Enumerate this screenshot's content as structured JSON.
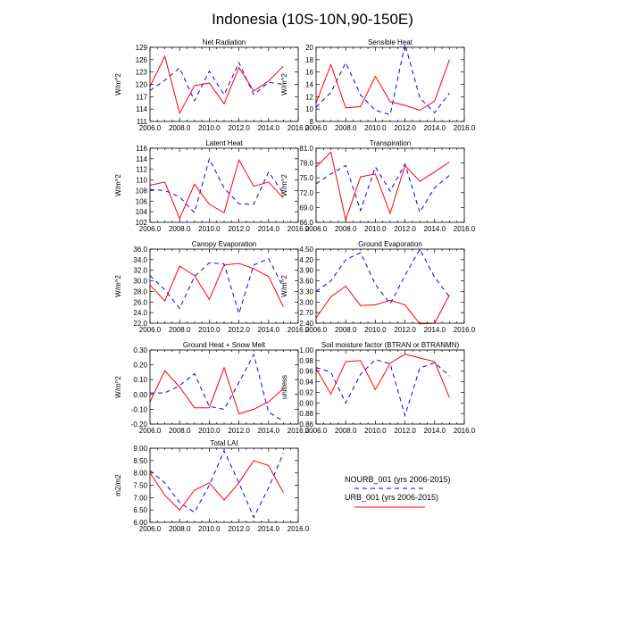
{
  "figure": {
    "title": "Indonesia (10S-10N,90-150E)"
  },
  "legend": [
    {
      "name": "NOURB_001 (yrs 2006-2015)",
      "color": "#0000ff",
      "dash": true
    },
    {
      "name": "URB_001 (yrs 2006-2015)",
      "color": "#ff0000",
      "dash": false
    }
  ],
  "chart_data": [
    {
      "type": "line",
      "title": "Net Radiation",
      "ylabel": "W/m^2",
      "xlim": [
        2006,
        2016
      ],
      "ylim": [
        111,
        129
      ],
      "xticks": [
        "2006.0",
        "2008.0",
        "2010.0",
        "2012.0",
        "2014.0",
        "2016.0"
      ],
      "yticks": [
        "111",
        "114",
        "117",
        "120",
        "123",
        "126",
        "129"
      ],
      "x": [
        2006,
        2007,
        2008,
        2009,
        2010,
        2011,
        2012,
        2013,
        2014,
        2015
      ],
      "series": [
        {
          "name": "NOURB_001 (yrs 2006-2015)",
          "values": [
            118.5,
            121,
            124,
            116,
            123.2,
            117.5,
            125.3,
            117.5,
            120.5,
            120
          ]
        },
        {
          "name": "URB_001 (yrs 2006-2015)",
          "values": [
            119.5,
            126.8,
            113,
            119.7,
            120.3,
            115.3,
            124.1,
            118.4,
            120.8,
            124.4
          ]
        }
      ]
    },
    {
      "type": "line",
      "title": "Sensible Heat",
      "ylabel": "W/m^2",
      "xlim": [
        2006,
        2016
      ],
      "ylim": [
        8,
        20
      ],
      "xticks": [
        "2006.0",
        "2008.0",
        "2010.0",
        "2012.0",
        "2014.0",
        "2016.0"
      ],
      "yticks": [
        "8",
        "10",
        "12",
        "14",
        "16",
        "18",
        "20"
      ],
      "x": [
        2006,
        2007,
        2008,
        2009,
        2010,
        2011,
        2012,
        2013,
        2014,
        2015
      ],
      "series": [
        {
          "name": "NOURB_001 (yrs 2006-2015)",
          "values": [
            10.3,
            12.7,
            17.5,
            12.3,
            9.8,
            9.1,
            20.5,
            11.8,
            9.4,
            12.6
          ]
        },
        {
          "name": "URB_001 (yrs 2006-2015)",
          "values": [
            11,
            17.2,
            10.2,
            10.4,
            15.3,
            11.2,
            10.6,
            9.8,
            11.3,
            18
          ]
        }
      ]
    },
    {
      "type": "line",
      "title": "Latent Heat",
      "ylabel": "W/m^2",
      "xlim": [
        2006,
        2016
      ],
      "ylim": [
        102,
        116
      ],
      "xticks": [
        "2006.0",
        "2008.0",
        "2010.0",
        "2012.0",
        "2014.0",
        "2016.0"
      ],
      "yticks": [
        "102",
        "104",
        "106",
        "108",
        "110",
        "112",
        "114",
        "116"
      ],
      "x": [
        2006,
        2007,
        2008,
        2009,
        2010,
        2011,
        2012,
        2013,
        2014,
        2015
      ],
      "series": [
        {
          "name": "NOURB_001 (yrs 2006-2015)",
          "values": [
            108.2,
            108,
            106.8,
            103.8,
            114,
            108.5,
            105.5,
            105.4,
            111.5,
            107.5
          ]
        },
        {
          "name": "URB_001 (yrs 2006-2015)",
          "values": [
            109,
            109.6,
            102.7,
            109.2,
            105.4,
            103.8,
            113.8,
            108.8,
            109.6,
            106.6
          ]
        }
      ]
    },
    {
      "type": "line",
      "title": "Transpiration",
      "ylabel": "W/m^2",
      "xlim": [
        2006,
        2016
      ],
      "ylim": [
        66,
        81
      ],
      "xticks": [
        "2006.0",
        "2008.0",
        "2010.0",
        "2012.0",
        "2014.0",
        "2016.0"
      ],
      "yticks": [
        "66.0",
        "69.0",
        "72.0",
        "75.0",
        "78.0",
        "81.0"
      ],
      "x": [
        2006,
        2007,
        2008,
        2009,
        2010,
        2011,
        2012,
        2013,
        2014,
        2015
      ],
      "series": [
        {
          "name": "NOURB_001 (yrs 2006-2015)",
          "values": [
            73.8,
            75.8,
            77.5,
            68.4,
            77.2,
            72.3,
            77.8,
            68,
            73,
            75.5
          ]
        },
        {
          "name": "URB_001 (yrs 2006-2015)",
          "values": [
            77.2,
            80.2,
            66.5,
            75.2,
            75.8,
            67.8,
            77.5,
            74.3,
            76.2,
            78.2
          ]
        }
      ]
    },
    {
      "type": "line",
      "title": "Canopy Evaporation",
      "ylabel": "W/m^2",
      "xlim": [
        2006,
        2016
      ],
      "ylim": [
        22,
        36
      ],
      "xticks": [
        "2006.0",
        "2008.0",
        "2010.0",
        "2012.0",
        "2014.0",
        "2016.0"
      ],
      "yticks": [
        "22.0",
        "24.0",
        "26.0",
        "28.0",
        "30.0",
        "32.0",
        "34.0",
        "36.0"
      ],
      "x": [
        2006,
        2007,
        2008,
        2009,
        2010,
        2011,
        2012,
        2013,
        2014,
        2015
      ],
      "series": [
        {
          "name": "NOURB_001 (yrs 2006-2015)",
          "values": [
            31,
            28.3,
            24.8,
            30.8,
            33.4,
            33.2,
            23.8,
            33,
            34.2,
            28.8
          ]
        },
        {
          "name": "URB_001 (yrs 2006-2015)",
          "values": [
            29.2,
            26.2,
            32.8,
            31,
            26.5,
            33,
            33.3,
            32.3,
            30.8,
            25.1
          ]
        }
      ]
    },
    {
      "type": "line",
      "title": "Ground Evaporation",
      "ylabel": "W/m^2",
      "xlim": [
        2006,
        2016
      ],
      "ylim": [
        2.4,
        4.5
      ],
      "xticks": [
        "2006.0",
        "2008.0",
        "2010.0",
        "2012.0",
        "2014.0",
        "2016.0"
      ],
      "yticks": [
        "2.40",
        "2.70",
        "3.00",
        "3.30",
        "3.60",
        "3.90",
        "4.20",
        "4.50"
      ],
      "x": [
        2006,
        2007,
        2008,
        2009,
        2010,
        2011,
        2012,
        2013,
        2014,
        2015
      ],
      "series": [
        {
          "name": "NOURB_001 (yrs 2006-2015)",
          "values": [
            3.3,
            3.6,
            4.2,
            4.4,
            3.5,
            2.95,
            3.75,
            4.5,
            3.7,
            3.15
          ]
        },
        {
          "name": "URB_001 (yrs 2006-2015)",
          "values": [
            2.55,
            3.15,
            3.45,
            2.9,
            2.92,
            3.05,
            2.92,
            2.38,
            2.4,
            3.2
          ]
        }
      ]
    },
    {
      "type": "line",
      "title": "Ground Heat + Snow Melt",
      "ylabel": "W/m^2",
      "xlim": [
        2006,
        2016
      ],
      "ylim": [
        -0.2,
        0.3
      ],
      "xticks": [
        "2006.0",
        "2008.0",
        "2010.0",
        "2012.0",
        "2014.0",
        "2016.0"
      ],
      "yticks": [
        "-0.20",
        "-0.10",
        "0.00",
        "0.10",
        "0.20",
        "0.30"
      ],
      "x": [
        2006,
        2007,
        2008,
        2009,
        2010,
        2011,
        2012,
        2013,
        2014,
        2015
      ],
      "series": [
        {
          "name": "NOURB_001 (yrs 2006-2015)",
          "values": [
            0.01,
            0.01,
            0.06,
            0.14,
            -0.08,
            -0.1,
            0.08,
            0.27,
            -0.12,
            -0.18
          ]
        },
        {
          "name": "URB_001 (yrs 2006-2015)",
          "values": [
            -0.05,
            0.16,
            0.05,
            -0.09,
            -0.09,
            0.18,
            -0.13,
            -0.1,
            -0.05,
            0.04
          ]
        }
      ]
    },
    {
      "type": "line",
      "title": "Soil moisture factor (BTRAN or BTRANMN)",
      "ylabel": "unitless",
      "xlim": [
        2006,
        2016
      ],
      "ylim": [
        0.86,
        1.0
      ],
      "xticks": [
        "2006.0",
        "2008.0",
        "2010.0",
        "2012.0",
        "2014.0",
        "2016.0"
      ],
      "yticks": [
        "0.86",
        "0.88",
        "0.90",
        "0.92",
        "0.94",
        "0.96",
        "0.98",
        "1.00"
      ],
      "x": [
        2006,
        2007,
        2008,
        2009,
        2010,
        2011,
        2012,
        2013,
        2014,
        2015
      ],
      "series": [
        {
          "name": "NOURB_001 (yrs 2006-2015)",
          "values": [
            0.967,
            0.958,
            0.9,
            0.954,
            0.982,
            0.974,
            0.876,
            0.966,
            0.976,
            0.951
          ]
        },
        {
          "name": "URB_001 (yrs 2006-2015)",
          "values": [
            0.965,
            0.917,
            0.978,
            0.98,
            0.925,
            0.975,
            0.992,
            0.985,
            0.978,
            0.91
          ]
        }
      ]
    },
    {
      "type": "line",
      "title": "Total LAI",
      "ylabel": "m2/m2",
      "xlim": [
        2006,
        2016
      ],
      "ylim": [
        6.0,
        9.0
      ],
      "xticks": [
        "2006.0",
        "2008.0",
        "2010.0",
        "2012.0",
        "2014.0",
        "2016.0"
      ],
      "yticks": [
        "6.00",
        "6.50",
        "7.00",
        "7.50",
        "8.00",
        "8.50",
        "9.00"
      ],
      "x": [
        2006,
        2007,
        2008,
        2009,
        2010,
        2011,
        2012,
        2013,
        2014,
        2015
      ],
      "series": [
        {
          "name": "NOURB_001 (yrs 2006-2015)",
          "values": [
            8.1,
            7.6,
            6.8,
            6.4,
            7.5,
            8.9,
            7.6,
            6.2,
            7.4,
            8.8
          ]
        },
        {
          "name": "URB_001 (yrs 2006-2015)",
          "values": [
            8.0,
            7.1,
            6.5,
            7.3,
            7.6,
            6.9,
            7.6,
            8.5,
            8.3,
            7.2
          ]
        }
      ]
    }
  ]
}
